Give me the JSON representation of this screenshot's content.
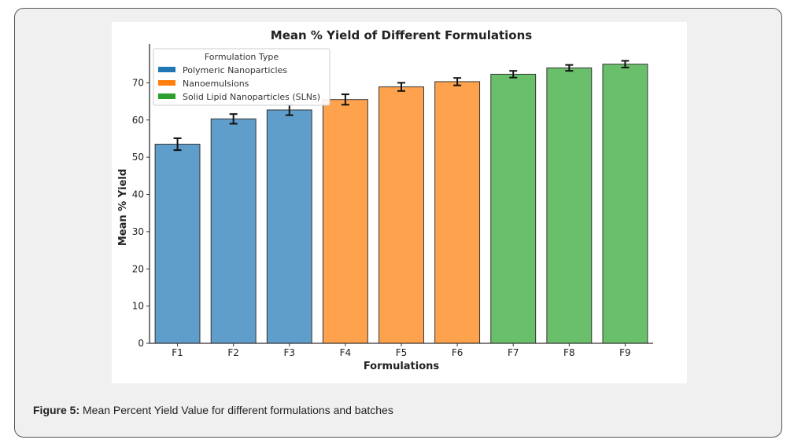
{
  "figure": {
    "caption_label": "Figure 5:",
    "caption_text": " Mean Percent Yield Value for different formulations and batches"
  },
  "chart_data": {
    "type": "bar",
    "title": "Mean % Yield of Different Formulations",
    "xlabel": "Formulations",
    "ylabel": "Mean % Yield",
    "categories": [
      "F1",
      "F2",
      "F3",
      "F4",
      "F5",
      "F6",
      "F7",
      "F8",
      "F9"
    ],
    "values": [
      53.5,
      60.3,
      62.7,
      65.5,
      68.9,
      70.3,
      72.3,
      74.0,
      75.0
    ],
    "errors": [
      1.6,
      1.3,
      1.4,
      1.4,
      1.1,
      1.0,
      0.9,
      0.8,
      0.9
    ],
    "groups": [
      "Polymeric Nanoparticles",
      "Polymeric Nanoparticles",
      "Polymeric Nanoparticles",
      "Nanoemulsions",
      "Nanoemulsions",
      "Nanoemulsions",
      "Solid Lipid Nanoparticles (SLNs)",
      "Solid Lipid Nanoparticles (SLNs)",
      "Solid Lipid Nanoparticles (SLNs)"
    ],
    "ylim": [
      0,
      80
    ],
    "yticks": [
      0,
      10,
      20,
      30,
      40,
      50,
      60,
      70
    ],
    "legend": {
      "title": "Formulation Type",
      "placement": "top-left",
      "entries": [
        {
          "label": "Polymeric Nanoparticles",
          "legend_color": "#1f77b4",
          "bar_color": "#5f9ecb"
        },
        {
          "label": "Nanoemulsions",
          "legend_color": "#ff7f0e",
          "bar_color": "#ffa24e"
        },
        {
          "label": "Solid Lipid Nanoparticles (SLNs)",
          "legend_color": "#2ca02c",
          "bar_color": "#6ac06a"
        }
      ]
    }
  }
}
